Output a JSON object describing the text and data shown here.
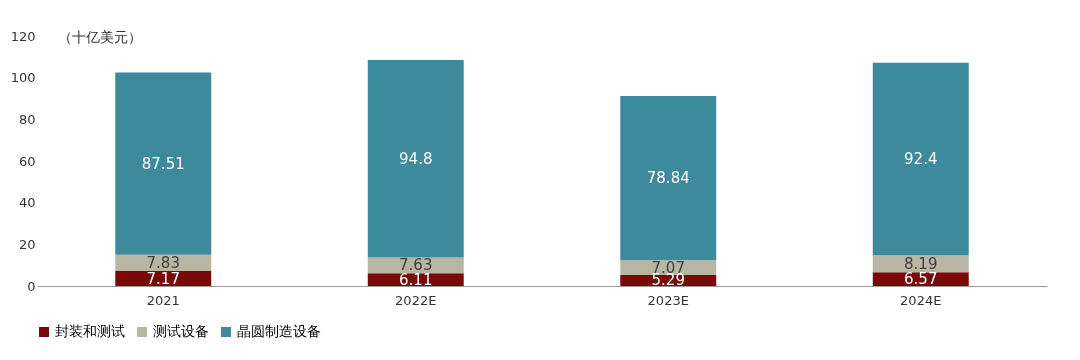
{
  "chart_data": {
    "type": "bar",
    "stacked": true,
    "ylabel": "（十亿美元）",
    "categories": [
      "2021",
      "2022E",
      "2023E",
      "2024E"
    ],
    "series": [
      {
        "name": "封装和测试",
        "color": "#7a0a0a",
        "values": [
          7.17,
          6.11,
          5.29,
          6.57
        ]
      },
      {
        "name": "测试设备",
        "color": "#b8b6a2",
        "values": [
          7.83,
          7.63,
          7.07,
          8.19
        ]
      },
      {
        "name": "晶圆制造设备",
        "color": "#3d8a9c",
        "values": [
          87.51,
          94.8,
          78.84,
          92.4
        ]
      }
    ],
    "ylim": [
      0,
      120
    ],
    "yticks": [
      0,
      20,
      40,
      60,
      80,
      100,
      120
    ],
    "grid": false,
    "legend": "bottom",
    "data_labels": true
  }
}
